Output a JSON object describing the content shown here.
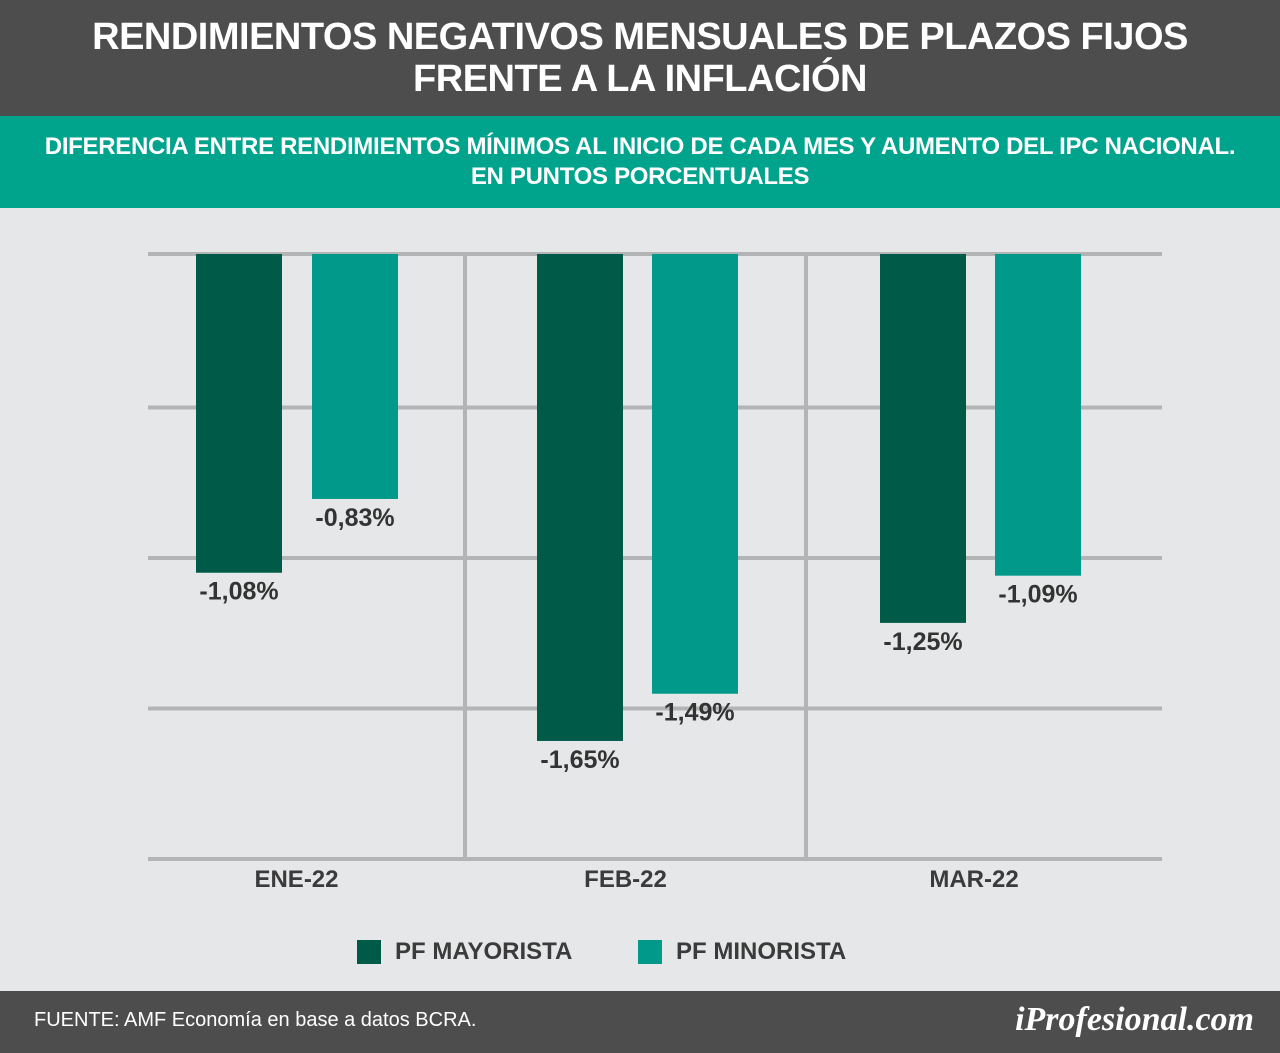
{
  "header": {
    "title": "RENDIMIENTOS NEGATIVOS MENSUALES DE PLAZOS FIJOS\nFRENTE A LA INFLACIÓN",
    "subtitle": "DIFERENCIA ENTRE RENDIMIENTOS MÍNIMOS AL INICIO DE CADA MES Y AUMENTO DEL IPC NACIONAL.\nEN PUNTOS PORCENTUALES"
  },
  "chart_data": {
    "type": "bar",
    "categories": [
      "ENE-22",
      "FEB-22",
      "MAR-22"
    ],
    "series": [
      {
        "name": "PF MAYORISTA",
        "values": [
          -1.08,
          -1.65,
          -1.25
        ],
        "labels": [
          "-1,08%",
          "-1,65%",
          "-1,25%"
        ],
        "color": "#005a48"
      },
      {
        "name": "PF MINORISTA",
        "values": [
          -0.83,
          -1.49,
          -1.09
        ],
        "labels": [
          "-0,83%",
          "-1,49%",
          "-1,09%"
        ],
        "color": "#00998a"
      }
    ],
    "ylim": [
      -2.05,
      0
    ],
    "gridlines": [
      0,
      -0.52,
      -1.03,
      -1.54,
      -2.05
    ],
    "grid": true,
    "legend_position": "bottom"
  },
  "legend": [
    {
      "label": "PF MAYORISTA",
      "color": "#005a48"
    },
    {
      "label": "PF MINORISTA",
      "color": "#00998a"
    }
  ],
  "footer": {
    "source": "FUENTE: AMF Economía en base a datos BCRA.",
    "brand": "iProfesional.com"
  }
}
